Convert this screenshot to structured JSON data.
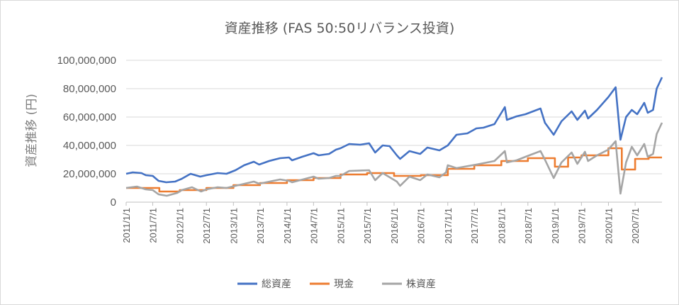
{
  "colors": {
    "total_assets": "#4472c4",
    "cash": "#ed7d31",
    "stock_assets": "#a5a5a5",
    "grid": "#d9d9d9",
    "text": "#595959"
  },
  "chart_data": {
    "type": "line",
    "title": "資産推移 (FAS 50:50リバランス投資)",
    "ylabel": "資産推移 (円)",
    "xlabel": "",
    "ylim": [
      0,
      100000000
    ],
    "yticks": [
      0,
      20000000,
      40000000,
      60000000,
      80000000,
      100000000
    ],
    "ytick_labels": [
      "0",
      "20,000,000",
      "40,000,000",
      "60,000,000",
      "80,000,000",
      "100,000,000"
    ],
    "xlim": [
      "2011-01-01",
      "2020-12-31"
    ],
    "xticks": [
      "2011-01-01",
      "2011-07-01",
      "2012-01-01",
      "2012-07-01",
      "2013-01-01",
      "2013-07-01",
      "2014-01-01",
      "2014-07-01",
      "2015-01-01",
      "2015-07-01",
      "2016-01-01",
      "2016-07-01",
      "2017-01-01",
      "2017-07-01",
      "2018-01-01",
      "2018-07-01",
      "2019-01-01",
      "2019-07-01",
      "2020-01-01",
      "2020-07-01"
    ],
    "xtick_labels": [
      "2011/1/1",
      "2011/7/1",
      "2012/1/1",
      "2012/7/1",
      "2013/1/1",
      "2013/7/1",
      "2014/1/1",
      "2014/7/1",
      "2015/1/1",
      "2015/7/1",
      "2016/1/1",
      "2016/7/1",
      "2017/1/1",
      "2017/7/1",
      "2018/1/1",
      "2018/7/1",
      "2019/1/1",
      "2019/7/1",
      "2020/1/1",
      "2020/7/1"
    ],
    "grid": true,
    "legend": "bottom",
    "series": [
      {
        "name": "総資産",
        "color_key": "total_assets",
        "step": false,
        "points": [
          [
            "2011-01-01",
            20000000
          ],
          [
            "2011-02-15",
            21000000
          ],
          [
            "2011-04-15",
            20500000
          ],
          [
            "2011-05-15",
            19000000
          ],
          [
            "2011-07-01",
            18500000
          ],
          [
            "2011-08-10",
            15000000
          ],
          [
            "2011-10-01",
            14000000
          ],
          [
            "2011-12-01",
            14500000
          ],
          [
            "2012-01-15",
            16500000
          ],
          [
            "2012-03-15",
            20000000
          ],
          [
            "2012-05-20",
            18000000
          ],
          [
            "2012-07-01",
            19000000
          ],
          [
            "2012-09-15",
            20500000
          ],
          [
            "2012-11-15",
            20000000
          ],
          [
            "2013-01-15",
            22500000
          ],
          [
            "2013-03-15",
            26000000
          ],
          [
            "2013-05-20",
            28500000
          ],
          [
            "2013-06-25",
            26500000
          ],
          [
            "2013-09-01",
            29000000
          ],
          [
            "2013-11-15",
            31000000
          ],
          [
            "2014-01-15",
            31500000
          ],
          [
            "2014-02-05",
            29500000
          ],
          [
            "2014-04-15",
            32000000
          ],
          [
            "2014-07-01",
            34500000
          ],
          [
            "2014-08-05",
            33000000
          ],
          [
            "2014-10-15",
            34000000
          ],
          [
            "2014-12-01",
            37000000
          ],
          [
            "2015-01-01",
            38000000
          ],
          [
            "2015-03-01",
            41000000
          ],
          [
            "2015-05-15",
            40500000
          ],
          [
            "2015-07-15",
            41500000
          ],
          [
            "2015-08-25",
            35000000
          ],
          [
            "2015-10-15",
            40000000
          ],
          [
            "2015-12-01",
            39500000
          ],
          [
            "2016-01-20",
            33000000
          ],
          [
            "2016-02-11",
            30500000
          ],
          [
            "2016-04-15",
            36000000
          ],
          [
            "2016-06-27",
            34000000
          ],
          [
            "2016-08-15",
            38500000
          ],
          [
            "2016-11-05",
            36500000
          ],
          [
            "2017-01-01",
            40000000
          ],
          [
            "2017-03-01",
            47500000
          ],
          [
            "2017-05-15",
            48500000
          ],
          [
            "2017-07-15",
            52000000
          ],
          [
            "2017-09-01",
            52500000
          ],
          [
            "2017-11-15",
            55000000
          ],
          [
            "2018-01-25",
            67000000
          ],
          [
            "2018-02-08",
            58000000
          ],
          [
            "2018-04-15",
            60500000
          ],
          [
            "2018-06-15",
            62000000
          ],
          [
            "2018-09-25",
            66000000
          ],
          [
            "2018-10-25",
            56000000
          ],
          [
            "2018-12-24",
            47500000
          ],
          [
            "2019-02-15",
            57000000
          ],
          [
            "2019-04-25",
            64000000
          ],
          [
            "2019-06-03",
            58000000
          ],
          [
            "2019-07-25",
            64500000
          ],
          [
            "2019-08-15",
            59000000
          ],
          [
            "2019-10-15",
            65000000
          ],
          [
            "2019-12-31",
            74000000
          ],
          [
            "2020-02-19",
            81000000
          ],
          [
            "2020-03-23",
            44000000
          ],
          [
            "2020-04-30",
            60000000
          ],
          [
            "2020-06-08",
            65000000
          ],
          [
            "2020-07-15",
            62000000
          ],
          [
            "2020-09-01",
            70000000
          ],
          [
            "2020-09-25",
            63000000
          ],
          [
            "2020-10-31",
            65000000
          ],
          [
            "2020-11-25",
            80000000
          ],
          [
            "2020-12-31",
            88000000
          ]
        ]
      },
      {
        "name": "現金",
        "color_key": "cash",
        "step": true,
        "points": [
          [
            "2011-01-01",
            10000000
          ],
          [
            "2011-07-01",
            10000000
          ],
          [
            "2011-08-15",
            7500000
          ],
          [
            "2012-01-01",
            8500000
          ],
          [
            "2012-07-01",
            10000000
          ],
          [
            "2013-01-01",
            12000000
          ],
          [
            "2013-07-01",
            13500000
          ],
          [
            "2014-01-01",
            15500000
          ],
          [
            "2014-07-01",
            17000000
          ],
          [
            "2015-01-01",
            19500000
          ],
          [
            "2015-07-01",
            20500000
          ],
          [
            "2016-01-01",
            18500000
          ],
          [
            "2016-07-01",
            19000000
          ],
          [
            "2017-01-01",
            23500000
          ],
          [
            "2017-07-01",
            26000000
          ],
          [
            "2018-01-01",
            29000000
          ],
          [
            "2018-07-01",
            31000000
          ],
          [
            "2019-01-01",
            25000000
          ],
          [
            "2019-04-01",
            31500000
          ],
          [
            "2019-07-01",
            33000000
          ],
          [
            "2020-01-01",
            38000000
          ],
          [
            "2020-04-01",
            23000000
          ],
          [
            "2020-07-01",
            30500000
          ],
          [
            "2020-10-01",
            31500000
          ],
          [
            "2020-12-31",
            31500000
          ]
        ]
      },
      {
        "name": "株資産",
        "color_key": "stock_assets",
        "step": false,
        "points": [
          [
            "2011-01-01",
            10000000
          ],
          [
            "2011-03-15",
            11000000
          ],
          [
            "2011-05-15",
            9000000
          ],
          [
            "2011-07-01",
            8500000
          ],
          [
            "2011-08-10",
            5500000
          ],
          [
            "2011-10-05",
            4500000
          ],
          [
            "2011-12-15",
            6500000
          ],
          [
            "2012-01-15",
            8500000
          ],
          [
            "2012-03-25",
            10500000
          ],
          [
            "2012-05-25",
            7500000
          ],
          [
            "2012-07-01",
            9000000
          ],
          [
            "2012-09-15",
            10500000
          ],
          [
            "2012-11-15",
            10000000
          ],
          [
            "2013-01-15",
            11500000
          ],
          [
            "2013-05-20",
            14500000
          ],
          [
            "2013-06-25",
            13000000
          ],
          [
            "2013-11-15",
            16000000
          ],
          [
            "2014-01-15",
            15000000
          ],
          [
            "2014-02-05",
            14000000
          ],
          [
            "2014-07-01",
            18000000
          ],
          [
            "2014-08-05",
            16500000
          ],
          [
            "2014-10-15",
            17000000
          ],
          [
            "2014-12-01",
            18500000
          ],
          [
            "2015-01-01",
            18500000
          ],
          [
            "2015-03-01",
            22000000
          ],
          [
            "2015-07-15",
            22500000
          ],
          [
            "2015-08-25",
            15500000
          ],
          [
            "2015-10-15",
            20500000
          ],
          [
            "2016-01-20",
            14500000
          ],
          [
            "2016-02-11",
            11500000
          ],
          [
            "2016-04-15",
            18000000
          ],
          [
            "2016-06-27",
            15500000
          ],
          [
            "2016-08-15",
            19500000
          ],
          [
            "2016-11-05",
            17500000
          ],
          [
            "2016-12-20",
            21000000
          ],
          [
            "2017-01-01",
            26000000
          ],
          [
            "2017-03-01",
            24000000
          ],
          [
            "2017-07-15",
            26500000
          ],
          [
            "2017-11-15",
            29000000
          ],
          [
            "2018-01-25",
            36000000
          ],
          [
            "2018-02-08",
            28000000
          ],
          [
            "2018-04-15",
            29500000
          ],
          [
            "2018-06-15",
            32000000
          ],
          [
            "2018-09-25",
            36000000
          ],
          [
            "2018-10-25",
            30000000
          ],
          [
            "2018-12-24",
            17000000
          ],
          [
            "2019-02-15",
            28000000
          ],
          [
            "2019-04-25",
            35000000
          ],
          [
            "2019-06-03",
            27000000
          ],
          [
            "2019-07-25",
            35500000
          ],
          [
            "2019-08-15",
            29000000
          ],
          [
            "2019-10-15",
            33000000
          ],
          [
            "2019-12-31",
            37000000
          ],
          [
            "2020-02-19",
            43000000
          ],
          [
            "2020-03-23",
            6000000
          ],
          [
            "2020-04-30",
            28000000
          ],
          [
            "2020-06-08",
            39000000
          ],
          [
            "2020-07-15",
            33000000
          ],
          [
            "2020-09-01",
            41000000
          ],
          [
            "2020-09-25",
            32000000
          ],
          [
            "2020-10-31",
            34000000
          ],
          [
            "2020-11-25",
            48000000
          ],
          [
            "2020-12-31",
            56000000
          ]
        ]
      }
    ]
  }
}
